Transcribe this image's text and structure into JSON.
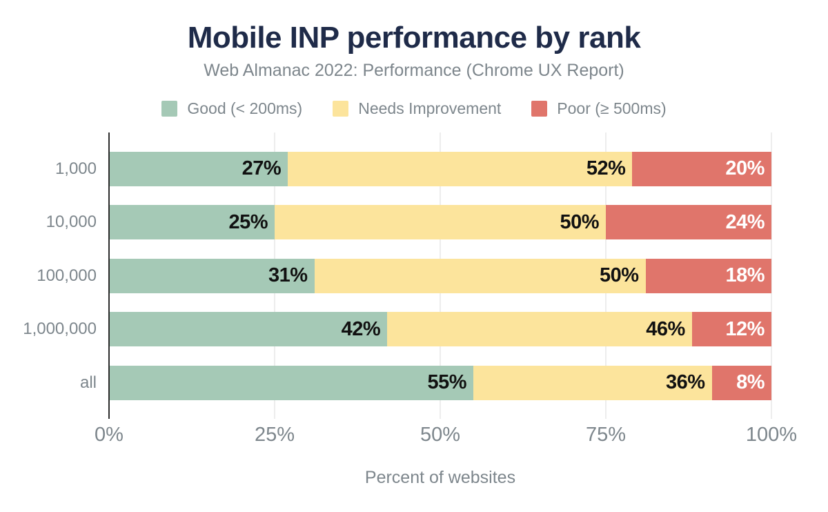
{
  "chart_data": {
    "type": "bar",
    "orientation": "horizontal",
    "stacked": true,
    "title": "Mobile INP performance by rank",
    "subtitle": "Web Almanac 2022: Performance (Chrome UX Report)",
    "xlabel": "Percent of websites",
    "value_suffix": "%",
    "xlim": [
      0,
      100
    ],
    "x_ticks": [
      "0%",
      "25%",
      "50%",
      "75%",
      "100%"
    ],
    "grid": "vertical-light",
    "legend_position": "top-center",
    "categories": [
      "1,000",
      "10,000",
      "100,000",
      "1,000,000",
      "all"
    ],
    "series": [
      {
        "name": "Good (< 200ms)",
        "color": "#a5c9b6",
        "label_color": "#111111",
        "values": [
          27,
          25,
          31,
          42,
          55
        ]
      },
      {
        "name": "Needs Improvement",
        "color": "#fce49c",
        "label_color": "#111111",
        "values": [
          52,
          50,
          50,
          46,
          36
        ]
      },
      {
        "name": "Poor (≥ 500ms)",
        "color": "#e0756b",
        "label_color": "#ffffff",
        "values": [
          20,
          24,
          18,
          12,
          8
        ]
      }
    ]
  },
  "colors": {
    "background": "#ffffff",
    "title": "#1f2b49",
    "secondary_text": "#7d868c",
    "axis_line": "#2b2b2b",
    "gridline": "#ededed"
  }
}
